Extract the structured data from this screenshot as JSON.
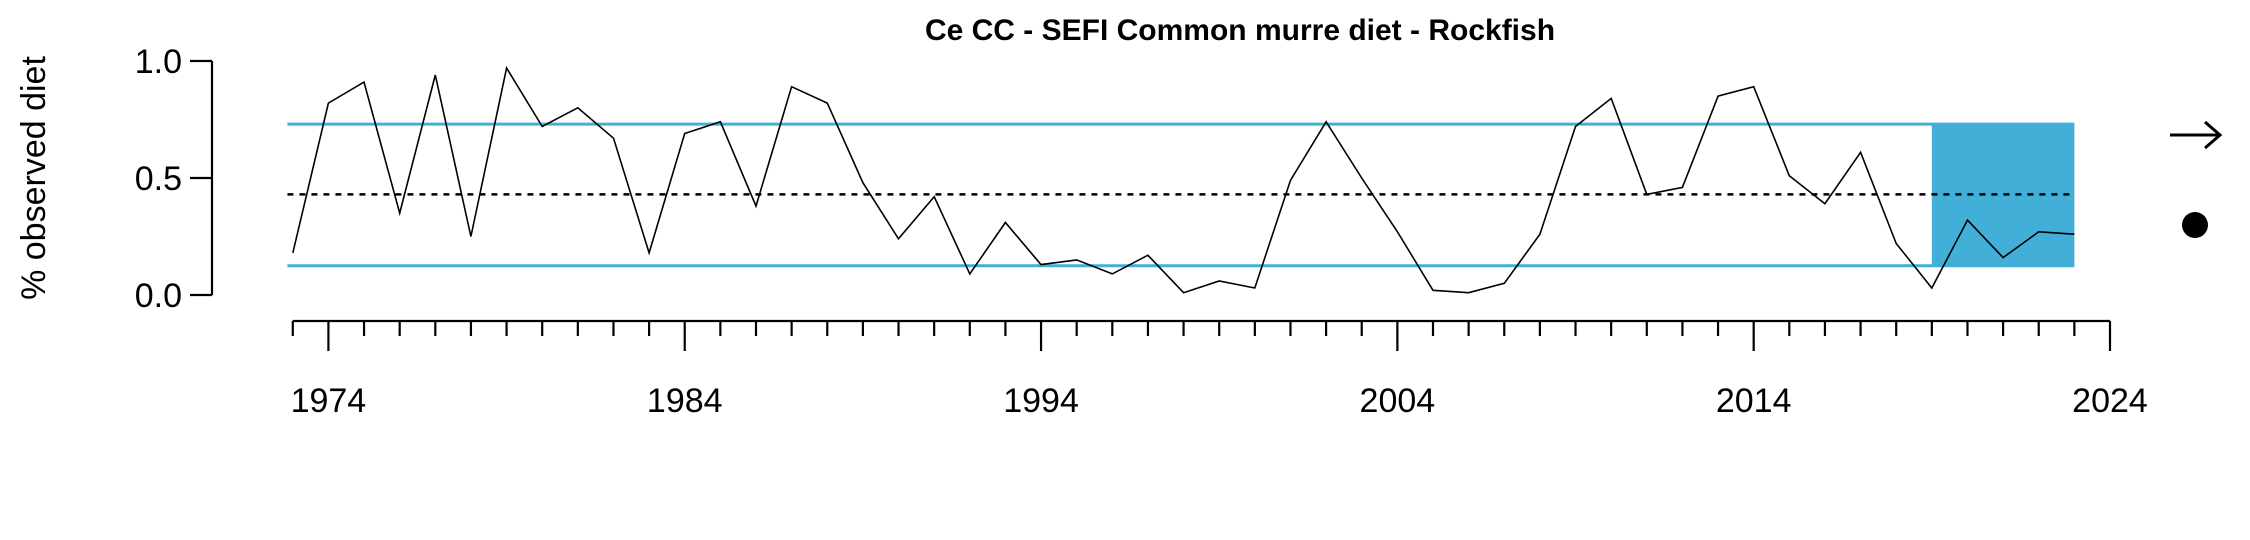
{
  "colors": {
    "accent": "#41afd7",
    "line": "#000000"
  },
  "chart_data": {
    "type": "line",
    "title": "Ce CC - SEFI Common murre diet - Rockfish",
    "ylabel": "% observed diet",
    "xlabel": "",
    "xlim": [
      1972.95,
      2024
    ],
    "ylim": [
      0,
      1.0
    ],
    "yticks": [
      0.0,
      0.5,
      1.0
    ],
    "ytick_labels": [
      "0.0",
      "0.5",
      "1.0"
    ],
    "xticks_labeled": [
      1974,
      1984,
      1994,
      2004,
      2014,
      2024
    ],
    "xtick_labels": [
      "1974",
      "1984",
      "1994",
      "2004",
      "2014",
      "2024"
    ],
    "xticks_minor_from": 1973,
    "xticks_minor_to": 2024,
    "mean": 0.43,
    "sd_upper": 0.73,
    "sd_lower": 0.125,
    "recent_window": [
      2019,
      2023
    ],
    "trend_indicator": "right-arrow",
    "mean_indicator": "filled-circle",
    "series": [
      {
        "x": [
          1973,
          1974,
          1975,
          1976,
          1977,
          1978,
          1979,
          1980,
          1981,
          1982,
          1983,
          1984,
          1985,
          1986,
          1987,
          1988,
          1989,
          1990,
          1991,
          1992,
          1993,
          1994,
          1995,
          1996,
          1997,
          1998,
          1999,
          2000,
          2001,
          2002,
          2003,
          2004,
          2005,
          2006,
          2007,
          2008,
          2009,
          2010,
          2011,
          2012,
          2013,
          2014,
          2015,
          2016,
          2017,
          2018,
          2019,
          2020,
          2021,
          2022,
          2023
        ],
        "values": [
          0.18,
          0.82,
          0.91,
          0.35,
          0.94,
          0.25,
          0.97,
          0.72,
          0.8,
          0.67,
          0.18,
          0.69,
          0.74,
          0.38,
          0.89,
          0.82,
          0.48,
          0.24,
          0.42,
          0.09,
          0.31,
          0.13,
          0.15,
          0.09,
          0.17,
          0.01,
          0.06,
          0.03,
          0.49,
          0.74,
          0.5,
          0.27,
          0.02,
          0.01,
          0.05,
          0.26,
          0.72,
          0.84,
          0.43,
          0.46,
          0.85,
          0.89,
          0.51,
          0.39,
          0.61,
          0.22,
          0.03,
          0.32,
          0.16,
          0.27,
          0.26
        ]
      }
    ]
  }
}
